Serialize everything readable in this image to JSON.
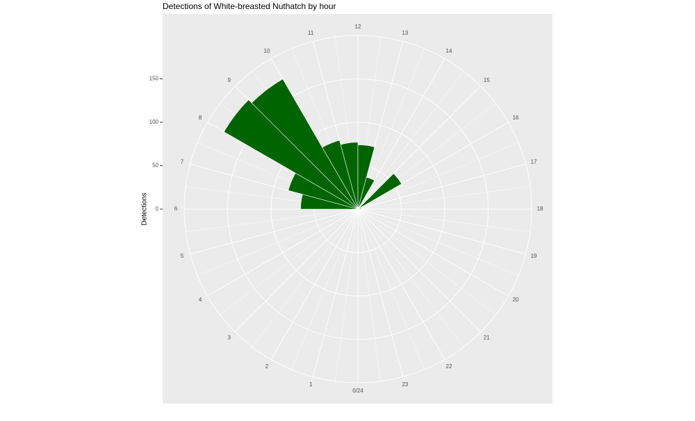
{
  "chart_data": {
    "type": "polar-bar",
    "title": "Detections of White-breasted Nuthatch by hour",
    "y_label": "Detections",
    "categories": [
      "0/24",
      "1",
      "2",
      "3",
      "4",
      "5",
      "6",
      "7",
      "8",
      "9",
      "10",
      "11",
      "12",
      "13",
      "14",
      "15",
      "16",
      "17",
      "18",
      "19",
      "20",
      "21",
      "22",
      "23"
    ],
    "values": [
      0,
      0,
      0,
      0,
      0,
      0,
      66,
      83,
      178,
      173,
      82,
      77,
      74,
      38,
      0,
      58,
      0,
      4,
      0,
      0,
      0,
      0,
      0,
      0
    ],
    "color": "#006400",
    "ylim": [
      0,
      200
    ],
    "yticks": [
      0,
      50,
      100,
      150
    ],
    "grid": true
  }
}
